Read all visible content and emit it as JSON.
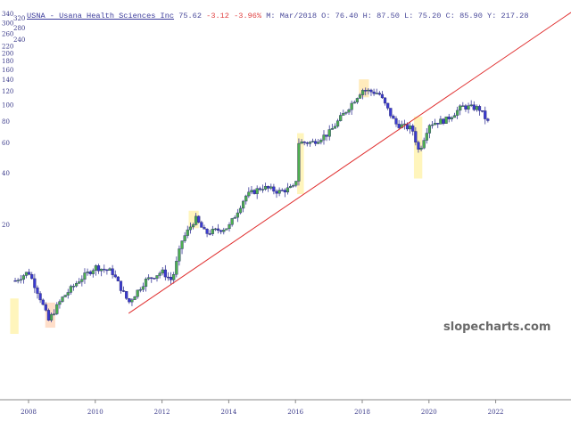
{
  "header": {
    "title": "USNA - Usana Health Sciences Inc",
    "last": "75.62",
    "change": "-3.12",
    "change_pct": "-3.96%",
    "bar_info": "M: Mar/2018",
    "open_label": "O:",
    "open": "76.40",
    "high_label": "H:",
    "high": "87.50",
    "low_label": "L:",
    "low": "75.20",
    "close_label": "C:",
    "close": "85.90",
    "y_label": "Y:",
    "y_value": "217.28"
  },
  "watermark": "slopecharts.com",
  "colors": {
    "up": "#4caf50",
    "down": "#3a3ad0",
    "trendline": "#e03030",
    "axis_text": "#3a3a8a",
    "negative": "#e04040"
  },
  "chart_data": {
    "type": "candlestick",
    "title": "USNA - Usana Health Sciences Inc",
    "y_scale": "log",
    "ylim": [
      4,
      340
    ],
    "y_ticks": [
      20,
      40,
      60,
      80,
      100,
      120,
      140,
      160,
      180,
      200,
      220,
      240,
      260,
      280,
      300,
      320,
      340
    ],
    "x_ticks": [
      "2008",
      "2010",
      "2012",
      "2014",
      "2016",
      "2018",
      "2020",
      "2022"
    ],
    "xlim": [
      2007.9,
      2024.3
    ],
    "grid": false,
    "close_path": [
      [
        2007.6,
        9.4
      ],
      [
        2008.0,
        10.6
      ],
      [
        2008.3,
        7.9
      ],
      [
        2008.6,
        5.5
      ],
      [
        2009.0,
        7.4
      ],
      [
        2009.5,
        9.4
      ],
      [
        2010.0,
        11.3
      ],
      [
        2010.5,
        10.6
      ],
      [
        2011.0,
        7.0
      ],
      [
        2011.5,
        9.4
      ],
      [
        2012.0,
        10.6
      ],
      [
        2012.3,
        9.4
      ],
      [
        2012.6,
        16.1
      ],
      [
        2013.0,
        21.7
      ],
      [
        2013.3,
        17.7
      ],
      [
        2014.0,
        19.3
      ],
      [
        2014.5,
        29.2
      ],
      [
        2015.0,
        33
      ],
      [
        2015.5,
        31
      ],
      [
        2016.0,
        33
      ],
      [
        2016.1,
        60
      ],
      [
        2016.5,
        60
      ],
      [
        2017.0,
        68
      ],
      [
        2017.5,
        91
      ],
      [
        2018.0,
        122
      ],
      [
        2018.5,
        116
      ],
      [
        2019.0,
        77
      ],
      [
        2019.5,
        72
      ],
      [
        2019.7,
        53
      ],
      [
        2020.0,
        77
      ],
      [
        2020.5,
        81
      ],
      [
        2021.0,
        97
      ],
      [
        2021.5,
        95
      ],
      [
        2021.8,
        77
      ]
    ],
    "trendline": [
      [
        2011.0,
        6.06
      ],
      [
        2024.26,
        344
      ]
    ],
    "highlights": [
      {
        "x": [
          2007.45,
          2007.7
        ],
        "y": [
          4.6,
          7.4
        ],
        "color": "#fff3b0"
      },
      {
        "x": [
          2016.05,
          2016.25
        ],
        "y": [
          30,
          68
        ],
        "color": "#fff3b0"
      },
      {
        "x": [
          2019.55,
          2019.8
        ],
        "y": [
          37,
          85
        ],
        "color": "#fff3b0"
      },
      {
        "x": [
          2017.9,
          2018.2
        ],
        "y": [
          110,
          140
        ],
        "color": "#ffe8b0"
      },
      {
        "x": [
          2008.5,
          2008.8
        ],
        "y": [
          5.0,
          7.0
        ],
        "color": "#ffd8c0"
      },
      {
        "x": [
          2012.8,
          2013.1
        ],
        "y": [
          19,
          24
        ],
        "color": "#fff3b0"
      }
    ]
  }
}
